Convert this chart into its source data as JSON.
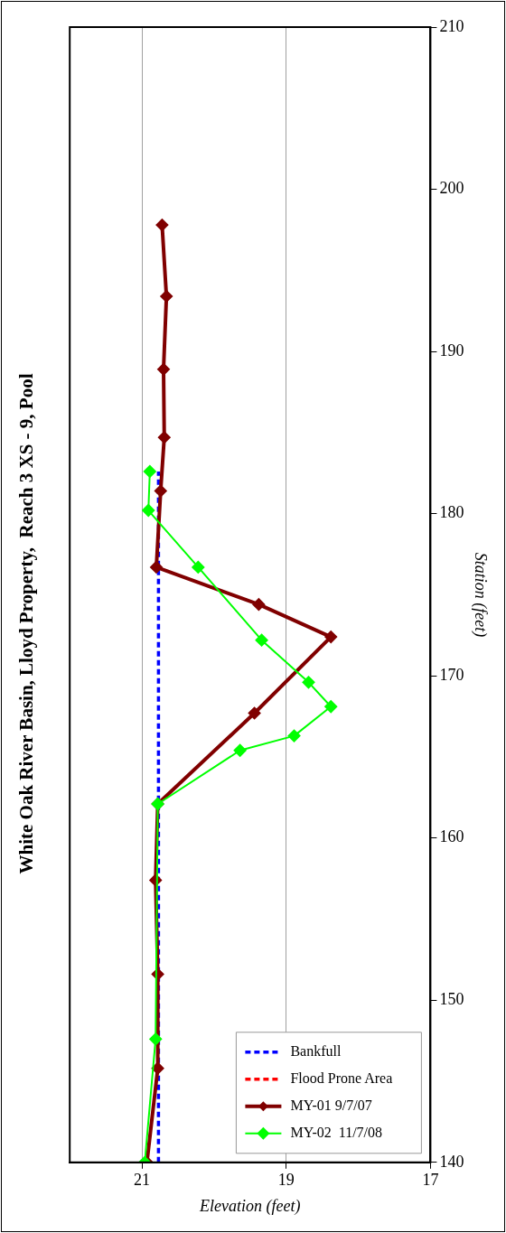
{
  "chart_data": {
    "type": "line",
    "title": "White Oak River Basin, Lloyd Property,  Reach 3 XS - 9, Pool",
    "xlabel": "Elevation (feet)",
    "ylabel": "Station (feet)",
    "xlim": [
      22,
      17
    ],
    "xticks": [
      21,
      19,
      17
    ],
    "ylim": [
      140,
      210
    ],
    "yticks": [
      140,
      150,
      160,
      170,
      180,
      190,
      200,
      210
    ],
    "grid": "x",
    "legend": "bottom right",
    "series": [
      {
        "name": "Bankfull",
        "color": "#0000ff",
        "line_style": "dashed",
        "marker": "none",
        "x": [
          20.77,
          20.77
        ],
        "values": [
          140,
          182.6
        ]
      },
      {
        "name": "Flood Prone Area",
        "color": "#ff0000",
        "line_style": "dashed",
        "marker": "none",
        "x": [
          null,
          null
        ],
        "values": [
          null,
          null
        ]
      },
      {
        "name": "MY-01 9/7/07",
        "color": "#800000",
        "line_style": "solid",
        "marker": "diamond",
        "x": [
          20.93,
          20.78,
          20.78,
          20.81,
          20.78,
          19.44,
          18.38,
          19.38,
          20.8,
          20.74,
          20.69,
          20.7,
          20.66,
          20.72
        ],
        "values": [
          140,
          145.8,
          151.6,
          157.4,
          162.1,
          167.7,
          172.4,
          174.4,
          176.7,
          181.4,
          184.7,
          188.9,
          193.4,
          197.8
        ]
      },
      {
        "name": "MY-02  11/7/08",
        "color": "#00ff00",
        "line_style": "solid",
        "marker": "diamond",
        "x": [
          20.96,
          20.81,
          20.78,
          19.64,
          18.89,
          18.38,
          18.69,
          19.34,
          20.22,
          20.91,
          20.89
        ],
        "values": [
          140,
          147.6,
          162.1,
          165.4,
          166.3,
          168.1,
          169.6,
          172.2,
          176.7,
          180.2,
          182.6
        ]
      }
    ]
  }
}
